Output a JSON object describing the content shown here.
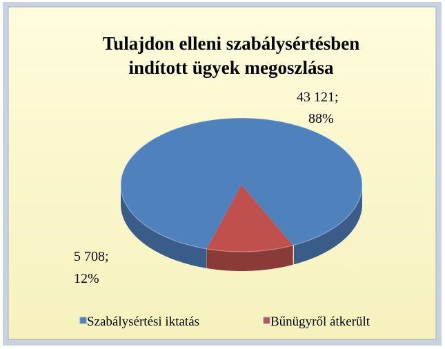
{
  "chart_data": {
    "type": "pie",
    "title": [
      "Tulajdon elleni szabálysértésben",
      "indított ügyek megoszlása"
    ],
    "categories": [
      "Szabálysértési iktatás",
      "Bűnügyről átkerült"
    ],
    "values": [
      43121,
      5708
    ],
    "value_labels": [
      "43 121;",
      "5 708;"
    ],
    "percents": [
      88,
      12
    ],
    "percent_labels": [
      "88%",
      "12%"
    ],
    "colors": [
      "#4f81bd",
      "#c0504d"
    ]
  }
}
